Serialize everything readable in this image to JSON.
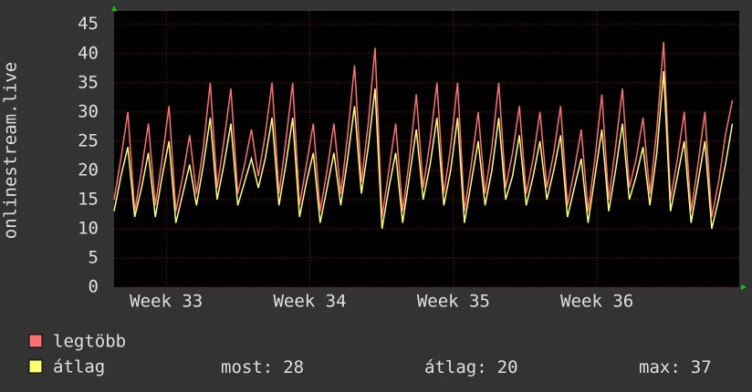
{
  "chart_data": {
    "type": "line",
    "y_label": "onlinestream.live",
    "x": [
      0,
      1,
      2,
      3,
      4,
      5,
      6,
      7,
      8,
      9,
      10,
      11,
      12,
      13,
      14,
      15,
      16,
      17,
      18,
      19,
      20,
      21,
      22,
      23,
      24,
      25,
      26,
      27,
      28,
      29,
      30,
      31,
      32,
      33,
      34,
      35,
      36,
      37,
      38,
      39,
      40,
      41,
      42,
      43,
      44,
      45,
      46,
      47,
      48,
      49,
      50,
      51,
      52,
      53,
      54,
      55,
      56,
      57,
      58,
      59,
      60,
      61,
      62,
      63,
      64,
      65,
      66,
      67,
      68,
      69,
      70,
      71,
      72,
      73,
      74,
      75,
      76,
      77,
      78,
      79,
      80,
      81,
      82,
      83,
      84,
      85,
      86,
      87,
      88,
      89,
      90
    ],
    "xlim": [
      0,
      91
    ],
    "xticks": [
      {
        "value": 7.6,
        "label": "Week 33"
      },
      {
        "value": 28.5,
        "label": "Week 34"
      },
      {
        "value": 49.4,
        "label": "Week 35"
      },
      {
        "value": 70.3,
        "label": "Week 36"
      }
    ],
    "ylim": [
      0,
      47.3
    ],
    "yticks": [
      0,
      5,
      10,
      15,
      20,
      25,
      30,
      35,
      40,
      45
    ],
    "grid": true,
    "series": [
      {
        "name": "legtöbb",
        "color": "#ff7070",
        "values": [
          15,
          22,
          30,
          13,
          20,
          28,
          14,
          22,
          31,
          13,
          19,
          26,
          16,
          24,
          35,
          17,
          25,
          34,
          16,
          21,
          27,
          19,
          26,
          35,
          16,
          25,
          35,
          14,
          21,
          28,
          13,
          20,
          28,
          16,
          26,
          38,
          18,
          28,
          41,
          12,
          20,
          28,
          13,
          22,
          33,
          17,
          25,
          35,
          16,
          24,
          35,
          13,
          21,
          30,
          16,
          24,
          35,
          17,
          23,
          31,
          16,
          22,
          30,
          17,
          23,
          31,
          14,
          20,
          27,
          13,
          22,
          33,
          15,
          24,
          34,
          17,
          22,
          29,
          16,
          27,
          42,
          15,
          22,
          30,
          13,
          21,
          30,
          12,
          18,
          26,
          32
        ]
      },
      {
        "name": "átlag",
        "color": "#ffff70",
        "values": [
          13,
          19,
          24,
          12,
          17,
          23,
          12,
          19,
          25,
          11,
          16,
          21,
          14,
          21,
          29,
          15,
          21,
          28,
          14,
          18,
          22,
          17,
          22,
          29,
          14,
          21,
          29,
          12,
          18,
          23,
          11,
          17,
          23,
          14,
          22,
          31,
          16,
          24,
          34,
          10,
          17,
          23,
          11,
          19,
          27,
          15,
          21,
          29,
          14,
          20,
          29,
          11,
          18,
          25,
          14,
          20,
          29,
          15,
          19,
          26,
          14,
          19,
          25,
          15,
          20,
          26,
          12,
          17,
          22,
          11,
          19,
          27,
          13,
          20,
          28,
          15,
          19,
          24,
          14,
          23,
          37,
          13,
          19,
          25,
          11,
          18,
          25,
          10,
          15,
          21,
          28
        ]
      }
    ],
    "stats": [
      {
        "label": "most:",
        "value": 28
      },
      {
        "label": "átlag:",
        "value": 20
      },
      {
        "label": "max:",
        "value": 37
      }
    ]
  }
}
